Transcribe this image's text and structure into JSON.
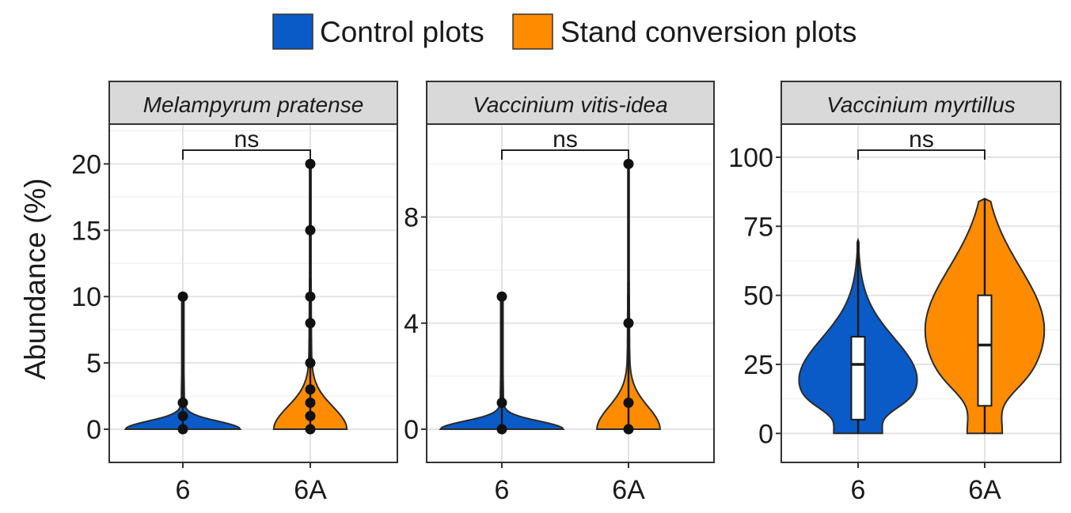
{
  "legend": {
    "items": [
      {
        "label": "Control plots",
        "color": "#0a5ac8"
      },
      {
        "label": "Stand conversion plots",
        "color": "#ff8c00"
      }
    ]
  },
  "ylabel": "Abundance (%)",
  "chart_data": [
    {
      "type": "violin",
      "panel_title": "Melampyrum pratense",
      "categories": [
        "6",
        "6A"
      ],
      "ylim": [
        -2.5,
        23
      ],
      "yticks": [
        0,
        5,
        10,
        15,
        20
      ],
      "significance": "ns",
      "series": [
        {
          "name": "Control plots",
          "category": "6",
          "max": 10,
          "outlier_points": [
            0,
            1,
            2,
            10
          ]
        },
        {
          "name": "Stand conversion plots",
          "category": "6A",
          "max": 20,
          "outlier_points": [
            0,
            1,
            2,
            3,
            5,
            8,
            10,
            15,
            20
          ]
        }
      ]
    },
    {
      "type": "violin",
      "panel_title": "Vaccinium vitis-idea",
      "categories": [
        "6",
        "6A"
      ],
      "ylim": [
        -1.25,
        11.5
      ],
      "yticks": [
        0,
        4,
        8
      ],
      "significance": "ns",
      "series": [
        {
          "name": "Control plots",
          "category": "6",
          "max": 5,
          "outlier_points": [
            0,
            1,
            5
          ]
        },
        {
          "name": "Stand conversion plots",
          "category": "6A",
          "max": 10,
          "outlier_points": [
            0,
            1,
            4,
            10
          ]
        }
      ]
    },
    {
      "type": "violin",
      "panel_title": "Vaccinium myrtillus",
      "categories": [
        "6",
        "6A"
      ],
      "ylim": [
        -10.5,
        112
      ],
      "yticks": [
        0,
        25,
        50,
        75,
        100
      ],
      "significance": "ns",
      "series": [
        {
          "name": "Control plots",
          "category": "6",
          "max": 70,
          "box": {
            "q1": 5,
            "median": 25,
            "q3": 35
          }
        },
        {
          "name": "Stand conversion plots",
          "category": "6A",
          "max": 85,
          "box": {
            "q1": 10,
            "median": 32,
            "q3": 50
          }
        }
      ]
    }
  ]
}
